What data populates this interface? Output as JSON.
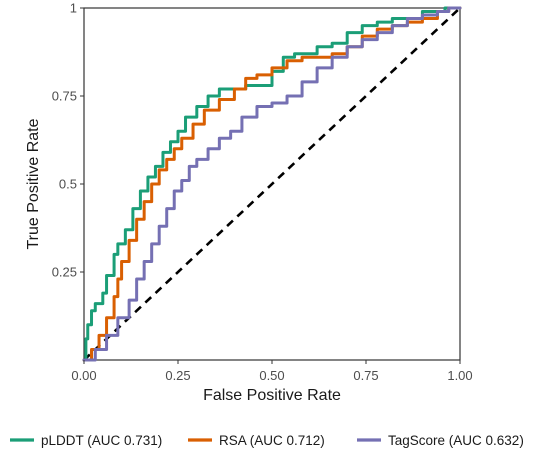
{
  "chart_data": {
    "type": "line",
    "title": "",
    "xlabel": "False Positive Rate",
    "ylabel": "True Positive Rate",
    "xlim": [
      0,
      1
    ],
    "ylim": [
      0,
      1
    ],
    "x_ticks": [
      "0.00",
      "0.25",
      "0.50",
      "0.75",
      "1.00"
    ],
    "x_tick_values": [
      0,
      0.25,
      0.5,
      0.75,
      1
    ],
    "y_ticks": [
      "0.25",
      "0.5",
      "0.75",
      "1"
    ],
    "y_tick_values": [
      0.25,
      0.5,
      0.75,
      1
    ],
    "grid": false,
    "legend_position": "bottom",
    "reference_line": {
      "x": [
        0,
        1
      ],
      "y": [
        0,
        1
      ],
      "style": "dashed",
      "color": "#000000"
    },
    "series": [
      {
        "name": "pLDDT (AUC 0.731)",
        "color": "#1b9e77",
        "x": [
          0,
          0.005,
          0.01,
          0.02,
          0.03,
          0.05,
          0.06,
          0.08,
          0.09,
          0.11,
          0.13,
          0.15,
          0.17,
          0.19,
          0.21,
          0.23,
          0.25,
          0.27,
          0.3,
          0.33,
          0.36,
          0.4,
          0.43,
          0.47,
          0.5,
          0.53,
          0.56,
          0.59,
          0.62,
          0.66,
          0.7,
          0.74,
          0.78,
          0.82,
          0.86,
          0.9,
          0.93,
          0.96,
          0.98,
          1.0
        ],
        "y": [
          0,
          0.06,
          0.1,
          0.14,
          0.16,
          0.19,
          0.24,
          0.3,
          0.33,
          0.37,
          0.43,
          0.48,
          0.52,
          0.55,
          0.59,
          0.62,
          0.65,
          0.69,
          0.72,
          0.75,
          0.77,
          0.77,
          0.78,
          0.78,
          0.82,
          0.86,
          0.87,
          0.87,
          0.89,
          0.9,
          0.93,
          0.95,
          0.96,
          0.97,
          0.97,
          0.99,
          0.99,
          1.0,
          1.0,
          1.0
        ]
      },
      {
        "name": "RSA (AUC 0.712)",
        "color": "#d95f02",
        "x": [
          0,
          0.02,
          0.04,
          0.06,
          0.08,
          0.09,
          0.1,
          0.12,
          0.14,
          0.16,
          0.18,
          0.2,
          0.22,
          0.24,
          0.26,
          0.29,
          0.32,
          0.36,
          0.4,
          0.43,
          0.46,
          0.5,
          0.54,
          0.58,
          0.62,
          0.66,
          0.7,
          0.74,
          0.78,
          0.82,
          0.86,
          0.9,
          0.94,
          0.97,
          1.0
        ],
        "y": [
          0,
          0.03,
          0.07,
          0.12,
          0.18,
          0.23,
          0.28,
          0.34,
          0.4,
          0.45,
          0.5,
          0.54,
          0.57,
          0.6,
          0.63,
          0.67,
          0.71,
          0.74,
          0.77,
          0.8,
          0.81,
          0.83,
          0.85,
          0.86,
          0.86,
          0.87,
          0.89,
          0.92,
          0.94,
          0.95,
          0.96,
          0.97,
          0.99,
          1.0,
          1.0
        ]
      },
      {
        "name": "TagScore (AUC 0.632)",
        "color": "#7570b3",
        "x": [
          0,
          0.03,
          0.06,
          0.09,
          0.12,
          0.14,
          0.16,
          0.18,
          0.2,
          0.22,
          0.24,
          0.26,
          0.28,
          0.3,
          0.33,
          0.36,
          0.39,
          0.42,
          0.46,
          0.5,
          0.54,
          0.58,
          0.62,
          0.66,
          0.7,
          0.74,
          0.78,
          0.82,
          0.86,
          0.9,
          0.94,
          0.97,
          1.0
        ],
        "y": [
          0,
          0.03,
          0.07,
          0.12,
          0.17,
          0.23,
          0.28,
          0.33,
          0.38,
          0.43,
          0.48,
          0.51,
          0.55,
          0.57,
          0.6,
          0.63,
          0.65,
          0.69,
          0.72,
          0.73,
          0.75,
          0.79,
          0.83,
          0.86,
          0.89,
          0.91,
          0.93,
          0.95,
          0.97,
          0.98,
          0.99,
          1.0,
          1.0
        ]
      }
    ]
  }
}
